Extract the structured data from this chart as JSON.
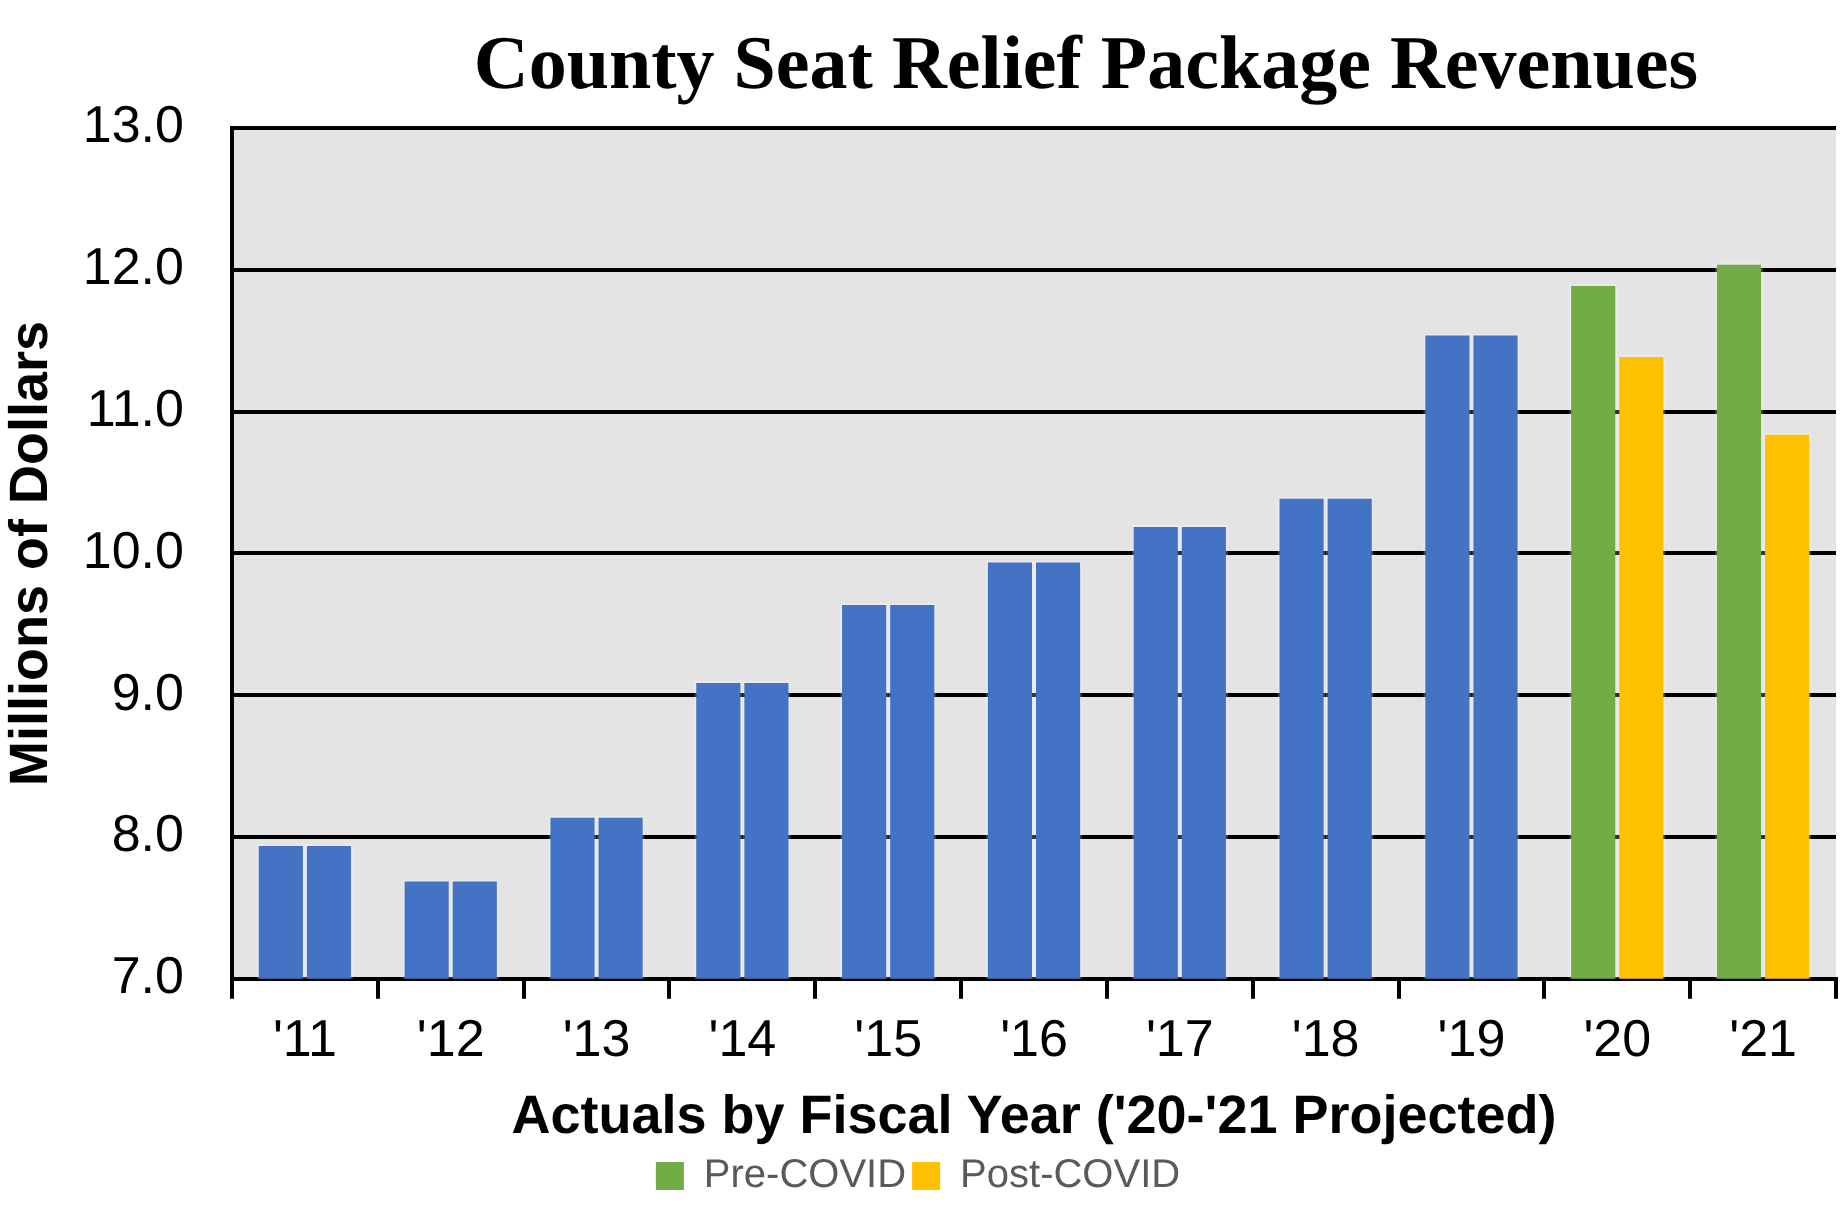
{
  "chart_data": {
    "type": "bar",
    "title": "County Seat Relief Package Revenues",
    "xlabel": "Actuals by Fiscal Year ('20-'21 Projected)",
    "ylabel": "Millions of Dollars",
    "categories": [
      "'11",
      "'12",
      "'13",
      "'14",
      "'15",
      "'16",
      "'17",
      "'18",
      "'19",
      "'20",
      "'21"
    ],
    "series": [
      {
        "name": "Pre-COVID",
        "color": "#70ad47",
        "colors": [
          "#4472c4",
          "#4472c4",
          "#4472c4",
          "#4472c4",
          "#4472c4",
          "#4472c4",
          "#4472c4",
          "#4472c4",
          "#4472c4",
          "#70ad47",
          "#70ad47"
        ],
        "values": [
          7.95,
          7.7,
          8.15,
          9.1,
          9.65,
          9.95,
          10.2,
          10.4,
          11.55,
          11.9,
          12.05
        ]
      },
      {
        "name": "Post-COVID",
        "color": "#ffc000",
        "colors": [
          "#4472c4",
          "#4472c4",
          "#4472c4",
          "#4472c4",
          "#4472c4",
          "#4472c4",
          "#4472c4",
          "#4472c4",
          "#4472c4",
          "#ffc000",
          "#ffc000"
        ],
        "values": [
          7.95,
          7.7,
          8.15,
          9.1,
          9.65,
          9.95,
          10.2,
          10.4,
          11.55,
          11.4,
          10.85
        ]
      }
    ],
    "ylim": [
      7,
      13
    ],
    "yticks": [
      {
        "value": 7,
        "label": "7.0"
      },
      {
        "value": 8,
        "label": "8.0"
      },
      {
        "value": 9,
        "label": "9.0"
      },
      {
        "value": 10,
        "label": "10.0"
      },
      {
        "value": 11,
        "label": "11.0"
      },
      {
        "value": 12,
        "label": "12.0"
      },
      {
        "value": 13,
        "label": "13.0"
      }
    ],
    "grid": "y",
    "legend": "bottom"
  }
}
